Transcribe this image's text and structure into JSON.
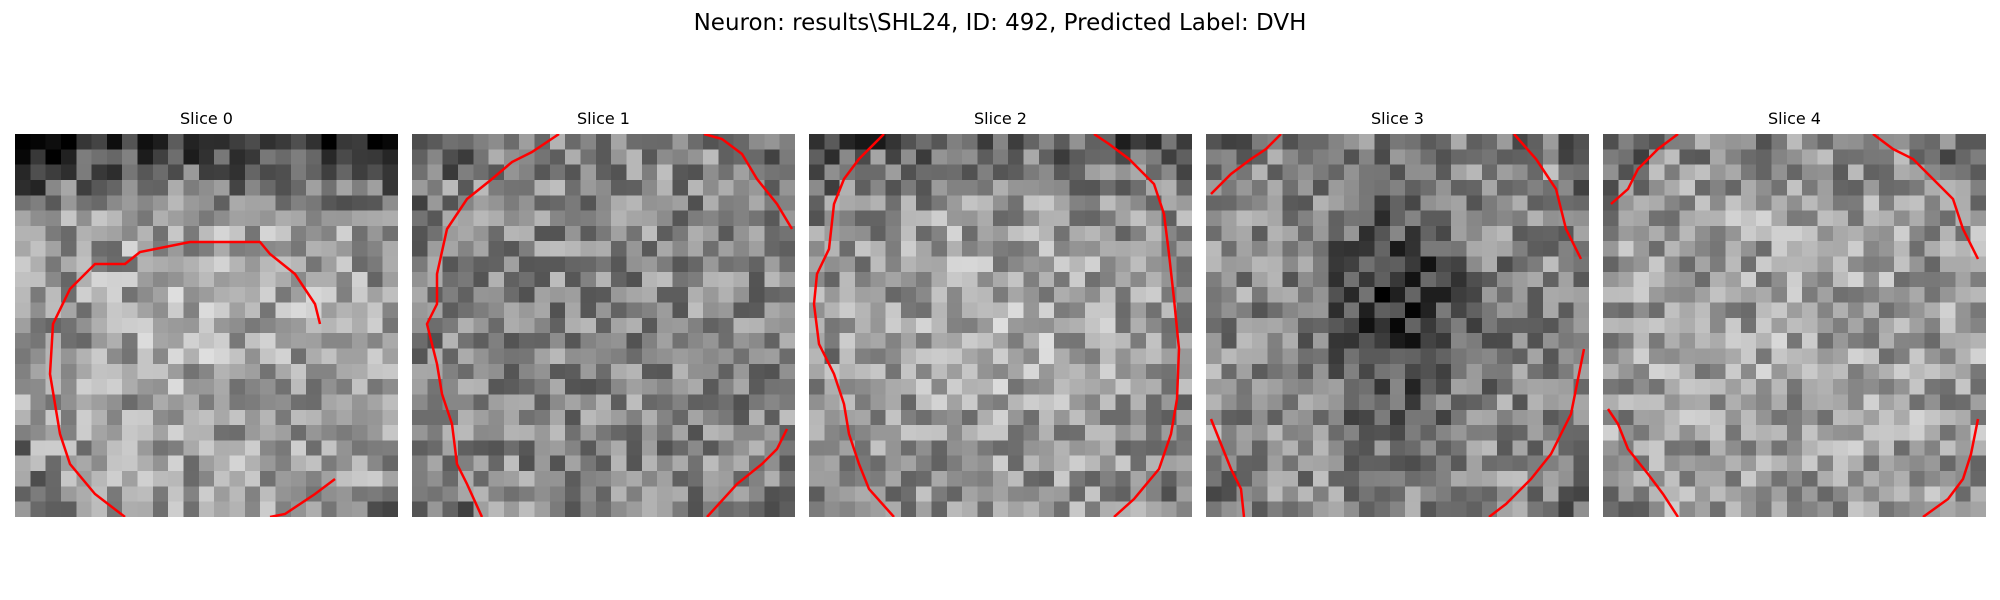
{
  "figure": {
    "title": "Neuron: results\\SHL24, ID: 492, Predicted Label: DVH",
    "contour_color": "#ff0000"
  },
  "panels": [
    {
      "title": "Slice 0"
    },
    {
      "title": "Slice 1"
    },
    {
      "title": "Slice 2"
    },
    {
      "title": "Slice 3"
    },
    {
      "title": "Slice 4"
    }
  ]
}
